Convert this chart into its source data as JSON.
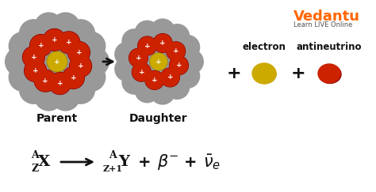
{
  "bg_color": "#ffffff",
  "title_color": "#ff6600",
  "vedantu_text": "Vedantu",
  "vedantu_sub": "Learn LIVE Online",
  "parent_label": "Parent",
  "daughter_label": "Daughter",
  "electron_label": "electron",
  "antineutrino_label": "antineutrino",
  "red_color": "#cc2200",
  "gray_color": "#999999",
  "yellow_color": "#ccaa00",
  "electron_color": "#ccaa00",
  "antineutrino_color": "#cc2200",
  "arrow_color": "#111111",
  "text_color": "#111111",
  "white_color": "#ffffff"
}
